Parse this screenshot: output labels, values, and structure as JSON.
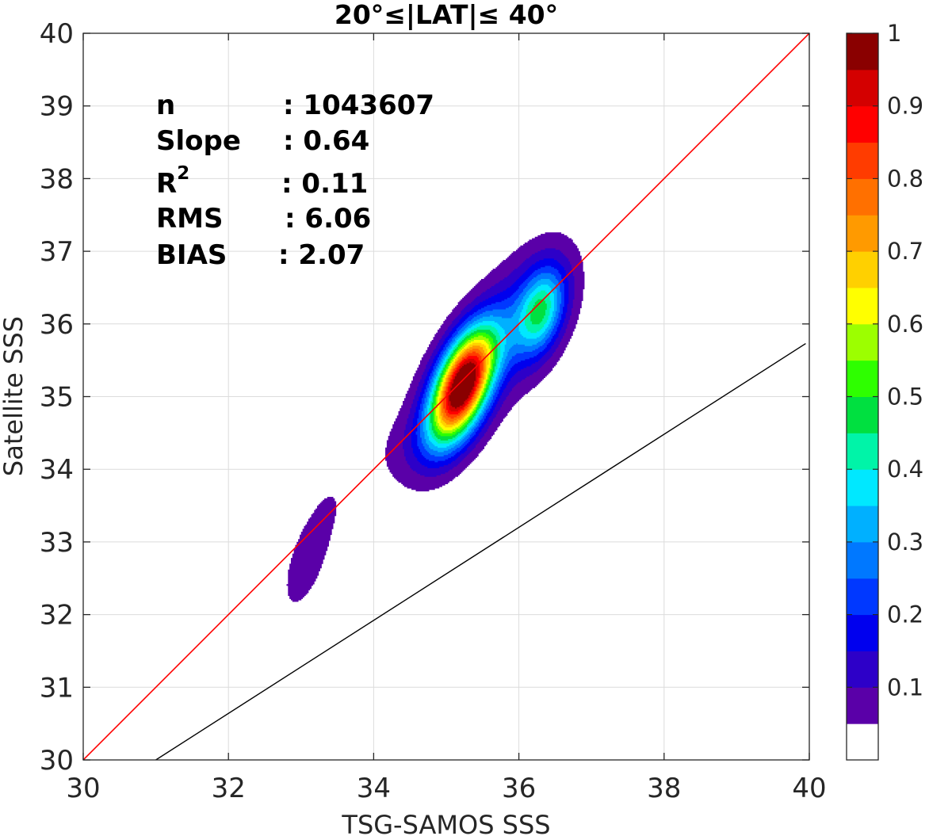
{
  "chart_data": {
    "type": "contour",
    "title": "20°≤|LAT|≤ 40°",
    "xlabel": "TSG-SAMOS SSS",
    "ylabel": "Satellite SSS",
    "xlim": [
      30,
      40
    ],
    "ylim": [
      30,
      40
    ],
    "xticks": [
      "30",
      "32",
      "34",
      "36",
      "38",
      "40"
    ],
    "yticks": [
      "30",
      "31",
      "32",
      "33",
      "34",
      "35",
      "36",
      "37",
      "38",
      "39",
      "40"
    ],
    "grid": true,
    "one_to_one_line": {
      "color": "#ff0000",
      "from": [
        30,
        30
      ],
      "to": [
        40,
        40
      ]
    },
    "fit_line": {
      "color": "#000000",
      "from": [
        31.0,
        30.0
      ],
      "to": [
        39.95,
        35.73
      ]
    },
    "stats": [
      {
        "label": "n",
        "value": ": 1043607"
      },
      {
        "label": "Slope",
        "value": ": 0.64"
      },
      {
        "label": "R",
        "sup": "2",
        "value": ": 0.11"
      },
      {
        "label": "RMS",
        "value": ": 6.06"
      },
      {
        "label": "BIAS",
        "value": ": 2.07"
      }
    ],
    "colorbar": {
      "ticks": [
        "0.1",
        "0.2",
        "0.3",
        "0.4",
        "0.5",
        "0.6",
        "0.7",
        "0.8",
        "0.9",
        "1"
      ],
      "range": [
        0,
        1
      ],
      "levels": [
        "#ffffff",
        "#5a00a8",
        "#2d00c8",
        "#0000ee",
        "#0038ff",
        "#0078ff",
        "#00b0ff",
        "#00e8ff",
        "#00f4a8",
        "#00e040",
        "#2eff00",
        "#9cff00",
        "#ffff00",
        "#ffd000",
        "#ff9a00",
        "#ff7000",
        "#ff3c00",
        "#ff0000",
        "#d40000",
        "#8a0000"
      ]
    },
    "density_peaks": [
      {
        "x": 35.22,
        "y": 35.15,
        "max_level": 0.95
      },
      {
        "x": 36.3,
        "y": 36.18,
        "max_level": 0.45
      },
      {
        "x": 33.1,
        "y": 32.7,
        "max_level": 0.1
      }
    ]
  }
}
